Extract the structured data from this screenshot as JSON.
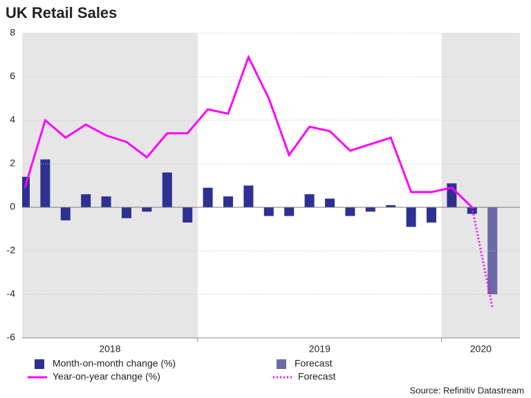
{
  "chart_data": {
    "type": "bar-line",
    "title": "UK Retail Sales",
    "source": "Source: Refinitiv Datastream",
    "categories": [
      null,
      null,
      null,
      null,
      null,
      null,
      null,
      null,
      null,
      null,
      null,
      null,
      null,
      null,
      null,
      null,
      null,
      null,
      null,
      null,
      null,
      null,
      null,
      null
    ],
    "periods": [
      {
        "label": "2018",
        "months": 9,
        "shaded": true
      },
      {
        "label": "2019",
        "months": 12,
        "shaded": false
      },
      {
        "label": "2020",
        "months": 3,
        "shaded": true
      }
    ],
    "shade_color": "#e6e6e6",
    "ylim": [
      -6,
      8
    ],
    "yticks": [
      -6,
      -4,
      -2,
      0,
      2,
      4,
      6,
      8
    ],
    "grid": true,
    "series": [
      {
        "name": "Month-on-month change (%)",
        "type": "bar",
        "color": "#2e3192",
        "values": [
          1.4,
          2.2,
          -0.6,
          0.6,
          0.5,
          -0.5,
          -0.2,
          1.6,
          -0.7,
          0.9,
          0.5,
          1.0,
          -0.4,
          -0.4,
          0.6,
          0.4,
          -0.4,
          -0.2,
          0.1,
          -0.9,
          -0.7,
          1.1,
          -0.3,
          null
        ]
      },
      {
        "name": "Forecast",
        "type": "bar",
        "color": "#6a6aa6",
        "values": [
          null,
          null,
          null,
          null,
          null,
          null,
          null,
          null,
          null,
          null,
          null,
          null,
          null,
          null,
          null,
          null,
          null,
          null,
          null,
          null,
          null,
          null,
          null,
          -4.0
        ]
      },
      {
        "name": "Year-on-year change (%)",
        "type": "line",
        "color": "#ff00ff",
        "dashed": false,
        "values": [
          0.9,
          4.0,
          3.2,
          3.8,
          3.3,
          3.0,
          2.3,
          3.4,
          3.4,
          4.5,
          4.3,
          6.9,
          5.0,
          2.4,
          3.7,
          3.5,
          2.6,
          2.9,
          3.2,
          0.7,
          0.7,
          0.9,
          0.0,
          null
        ]
      },
      {
        "name": "Forecast",
        "type": "line",
        "color": "#ff00ff",
        "dashed": true,
        "values": [
          null,
          null,
          null,
          null,
          null,
          null,
          null,
          null,
          null,
          null,
          null,
          null,
          null,
          null,
          null,
          null,
          null,
          null,
          null,
          null,
          null,
          null,
          0.0,
          -4.6
        ]
      }
    ]
  }
}
